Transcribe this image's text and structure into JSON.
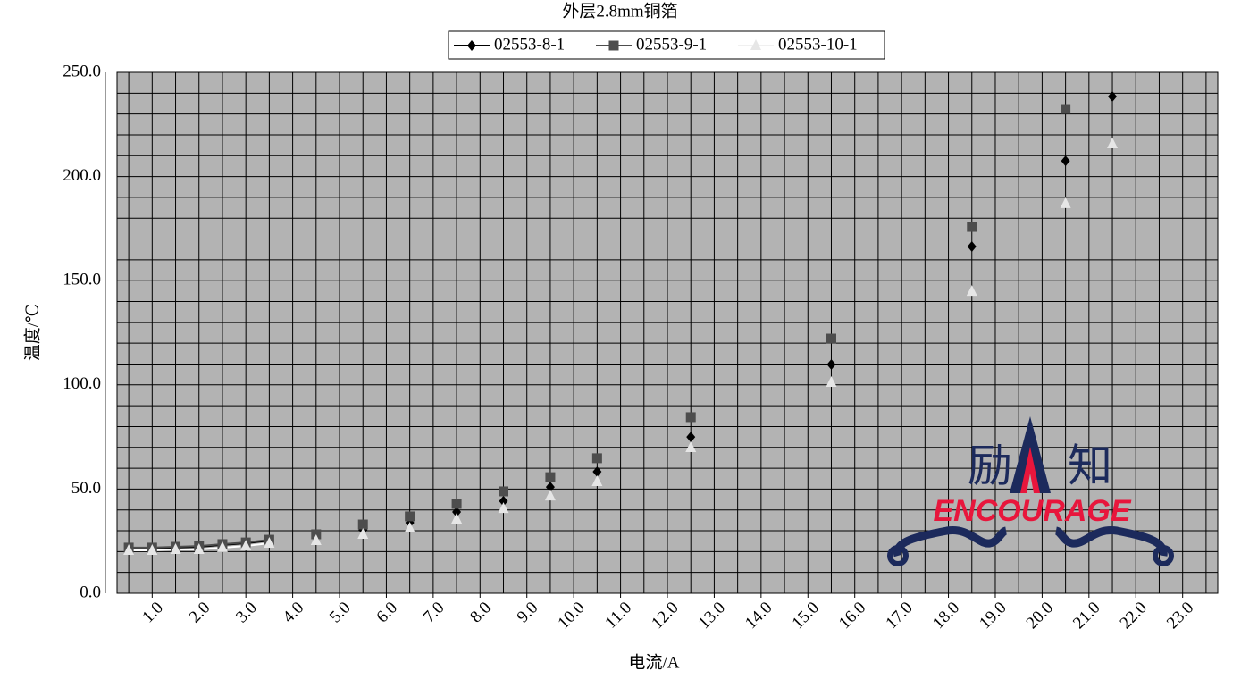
{
  "chart_data": {
    "type": "line",
    "title": "外层2.8mm铜箔",
    "x_label": "电流/A",
    "y_label": "温度/℃",
    "x": [
      0.5,
      1.0,
      1.5,
      2.0,
      2.5,
      3.0,
      3.5,
      4.5,
      5.5,
      6.5,
      7.5,
      8.5,
      9.5,
      10.5,
      12.5,
      15.5,
      18.5,
      20.5,
      21.5
    ],
    "series": [
      {
        "name": "02553-8-1",
        "color": "#000000",
        "marker": "diamond",
        "values": [
          21.4,
          21.4,
          21.9,
          22.3,
          23.2,
          24.0,
          25.3,
          27.9,
          30.4,
          33.9,
          39.0,
          44.2,
          51.0,
          58.3,
          75.0,
          109.8,
          166.4,
          207.5,
          238.4
        ]
      },
      {
        "name": "02553-9-1",
        "color": "#4d4d4d",
        "marker": "square",
        "values": [
          21.9,
          21.9,
          22.3,
          22.7,
          23.6,
          24.4,
          25.7,
          28.3,
          33.0,
          36.9,
          42.9,
          48.9,
          55.7,
          64.8,
          84.5,
          122.2,
          175.8,
          232.4,
          null
        ]
      },
      {
        "name": "02553-10-1",
        "color": "#e6e6e6",
        "marker": "triangle",
        "values": [
          20.6,
          20.6,
          21.0,
          21.0,
          21.9,
          22.7,
          24.0,
          25.3,
          28.3,
          31.3,
          35.6,
          40.7,
          46.7,
          53.6,
          69.9,
          101.2,
          144.9,
          187.0,
          215.7
        ]
      }
    ],
    "xlim": [
      0.25,
      23.75
    ],
    "xticks": [
      {
        "value": 1,
        "label": "1.0"
      },
      {
        "value": 2,
        "label": "2.0"
      },
      {
        "value": 3,
        "label": "3.0"
      },
      {
        "value": 4,
        "label": "4.0"
      },
      {
        "value": 5,
        "label": "5.0"
      },
      {
        "value": 6,
        "label": "6.0"
      },
      {
        "value": 7,
        "label": "7.0"
      },
      {
        "value": 8,
        "label": "8.0"
      },
      {
        "value": 9,
        "label": "9.0"
      },
      {
        "value": 10,
        "label": "10.0"
      },
      {
        "value": 11,
        "label": "11.0"
      },
      {
        "value": 12,
        "label": "12.0"
      },
      {
        "value": 13,
        "label": "13.0"
      },
      {
        "value": 14,
        "label": "14.0"
      },
      {
        "value": 15,
        "label": "15.0"
      },
      {
        "value": 16,
        "label": "16.0"
      },
      {
        "value": 17,
        "label": "17.0"
      },
      {
        "value": 18,
        "label": "18.0"
      },
      {
        "value": 19,
        "label": "19.0"
      },
      {
        "value": 20,
        "label": "20.0"
      },
      {
        "value": 21,
        "label": "21.0"
      },
      {
        "value": 22,
        "label": "22.0"
      },
      {
        "value": 23,
        "label": "23.0"
      }
    ],
    "ylim": [
      0,
      250
    ],
    "yticks": [
      {
        "value": 0,
        "label": "0.0"
      },
      {
        "value": 50,
        "label": "50.0"
      },
      {
        "value": 100,
        "label": "100.0"
      },
      {
        "value": 150,
        "label": "150.0"
      },
      {
        "value": 200,
        "label": "200.0"
      },
      {
        "value": 250,
        "label": "250.0"
      }
    ],
    "grid": true,
    "legend": "top",
    "watermark": {
      "chars": [
        "励",
        "知"
      ],
      "text": "ENCOURAGE"
    }
  }
}
